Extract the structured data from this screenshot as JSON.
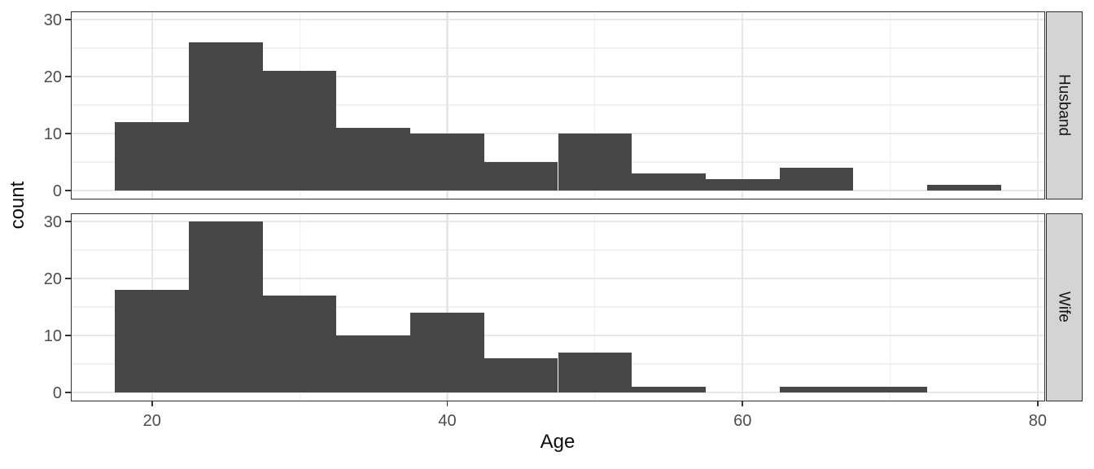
{
  "chart_data": {
    "type": "histogram",
    "title": "",
    "xlabel": "Age",
    "ylabel": "count",
    "facet_variable_values": [
      "Husband",
      "Wife"
    ],
    "bin_start": 17.5,
    "bin_width": 5,
    "bin_edges": [
      17.5,
      22.5,
      27.5,
      32.5,
      37.5,
      42.5,
      47.5,
      52.5,
      57.5,
      62.5,
      67.5,
      72.5,
      77.5
    ],
    "series": [
      {
        "name": "Husband",
        "counts": [
          12,
          26,
          21,
          11,
          10,
          5,
          10,
          3,
          2,
          4,
          0,
          1
        ]
      },
      {
        "name": "Wife",
        "counts": [
          18,
          30,
          17,
          10,
          14,
          6,
          7,
          1,
          0,
          1,
          1,
          0
        ]
      }
    ],
    "x_ticks": [
      20,
      40,
      60,
      80
    ],
    "x_tick_labels": [
      "20",
      "40",
      "60",
      "80"
    ],
    "x_minor_breaks": [
      30,
      50,
      70
    ],
    "y_ticks": [
      0,
      10,
      20,
      30
    ],
    "y_tick_labels": [
      "0",
      "10",
      "20",
      "30"
    ],
    "y_minor_breaks": [
      5,
      15,
      25
    ],
    "xlim": [
      14.5,
      80.5
    ],
    "ylim": [
      -1.5,
      31.5
    ],
    "grid": "on",
    "legend_position": "none",
    "colors": {
      "bar_fill": "#474747",
      "panel_background": "#ffffff",
      "panel_border": "#2e2e2e",
      "grid_major": "#e7e7e7",
      "grid_minor": "#f1f1f1",
      "strip_fill": "#d4d4d4",
      "tick_label": "#4d4d4d",
      "axis_title": "#0d0d0d"
    }
  }
}
